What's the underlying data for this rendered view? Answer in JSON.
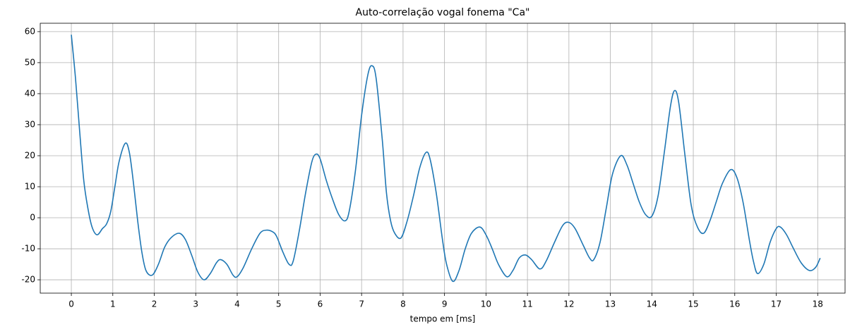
{
  "chart_data": {
    "type": "line",
    "title": "Auto-correlação vogal fonema \"Ca\"",
    "xlabel": "tempo em [ms]",
    "x": [
      0,
      0.1,
      0.2,
      0.3,
      0.4,
      0.5,
      0.62,
      0.75,
      0.85,
      0.95,
      1.05,
      1.15,
      1.3,
      1.4,
      1.5,
      1.6,
      1.7,
      1.8,
      1.95,
      2.1,
      2.25,
      2.4,
      2.6,
      2.75,
      2.9,
      3.05,
      3.2,
      3.35,
      3.5,
      3.6,
      3.75,
      3.9,
      4.0,
      4.15,
      4.35,
      4.55,
      4.7,
      4.85,
      4.95,
      5.1,
      5.25,
      5.35,
      5.5,
      5.65,
      5.8,
      5.9,
      6.0,
      6.15,
      6.3,
      6.45,
      6.6,
      6.7,
      6.85,
      7.0,
      7.15,
      7.25,
      7.35,
      7.5,
      7.6,
      7.7,
      7.8,
      7.95,
      8.1,
      8.25,
      8.4,
      8.55,
      8.65,
      8.8,
      8.95,
      9.05,
      9.2,
      9.35,
      9.5,
      9.65,
      9.85,
      10.0,
      10.15,
      10.3,
      10.5,
      10.65,
      10.8,
      10.95,
      11.1,
      11.3,
      11.45,
      11.65,
      11.85,
      12.0,
      12.15,
      12.35,
      12.5,
      12.6,
      12.75,
      12.9,
      13.05,
      13.25,
      13.4,
      13.55,
      13.7,
      13.85,
      14.0,
      14.15,
      14.3,
      14.45,
      14.55,
      14.65,
      14.8,
      14.95,
      15.1,
      15.25,
      15.4,
      15.55,
      15.7,
      15.9,
      16.05,
      16.2,
      16.35,
      16.45,
      16.55,
      16.7,
      16.85,
      17.0,
      17.1,
      17.25,
      17.4,
      17.6,
      17.8,
      17.95,
      18.06
    ],
    "series": [
      {
        "color": "#1f77b4",
        "values": [
          59,
          45,
          28,
          12,
          3,
          -3,
          -5.5,
          -3.5,
          -2,
          2,
          10,
          18,
          24,
          21,
          11,
          -1,
          -11,
          -17,
          -18.5,
          -15,
          -9.5,
          -6.5,
          -5,
          -7,
          -12,
          -17.5,
          -20,
          -18,
          -14.5,
          -13.5,
          -15,
          -18.5,
          -19,
          -16,
          -10,
          -5,
          -4,
          -4.5,
          -6,
          -11,
          -15,
          -14,
          -4,
          8,
          18,
          20.5,
          19,
          12,
          6,
          1,
          -1,
          2,
          15,
          33,
          46,
          49,
          45,
          25,
          8,
          -1,
          -5,
          -6.5,
          -1,
          7,
          16,
          21,
          19,
          8,
          -7,
          -15,
          -20.5,
          -17,
          -10,
          -5,
          -3,
          -5.5,
          -10,
          -15,
          -19,
          -17,
          -13,
          -12,
          -13.5,
          -16.5,
          -14,
          -8,
          -2.5,
          -1.5,
          -3.5,
          -9,
          -13,
          -13.5,
          -8,
          3,
          14,
          20,
          17,
          11,
          5,
          1,
          0.5,
          7,
          21,
          36,
          41,
          37,
          20,
          4,
          -3,
          -5,
          -1,
          5,
          11,
          15.5,
          13,
          5,
          -7,
          -14,
          -18,
          -15,
          -8,
          -3.5,
          -3,
          -5.5,
          -9.5,
          -14.5,
          -17,
          -16,
          -13
        ]
      }
    ],
    "xlim": [
      -0.75,
      18.66
    ],
    "xticks": [
      0,
      1,
      2,
      3,
      4,
      5,
      6,
      7,
      8,
      9,
      10,
      11,
      12,
      13,
      14,
      15,
      16,
      17,
      18
    ],
    "ylim": [
      -24.3,
      62.7
    ],
    "yticks": [
      -20,
      -10,
      0,
      10,
      20,
      30,
      40,
      50,
      60
    ],
    "grid": true
  }
}
